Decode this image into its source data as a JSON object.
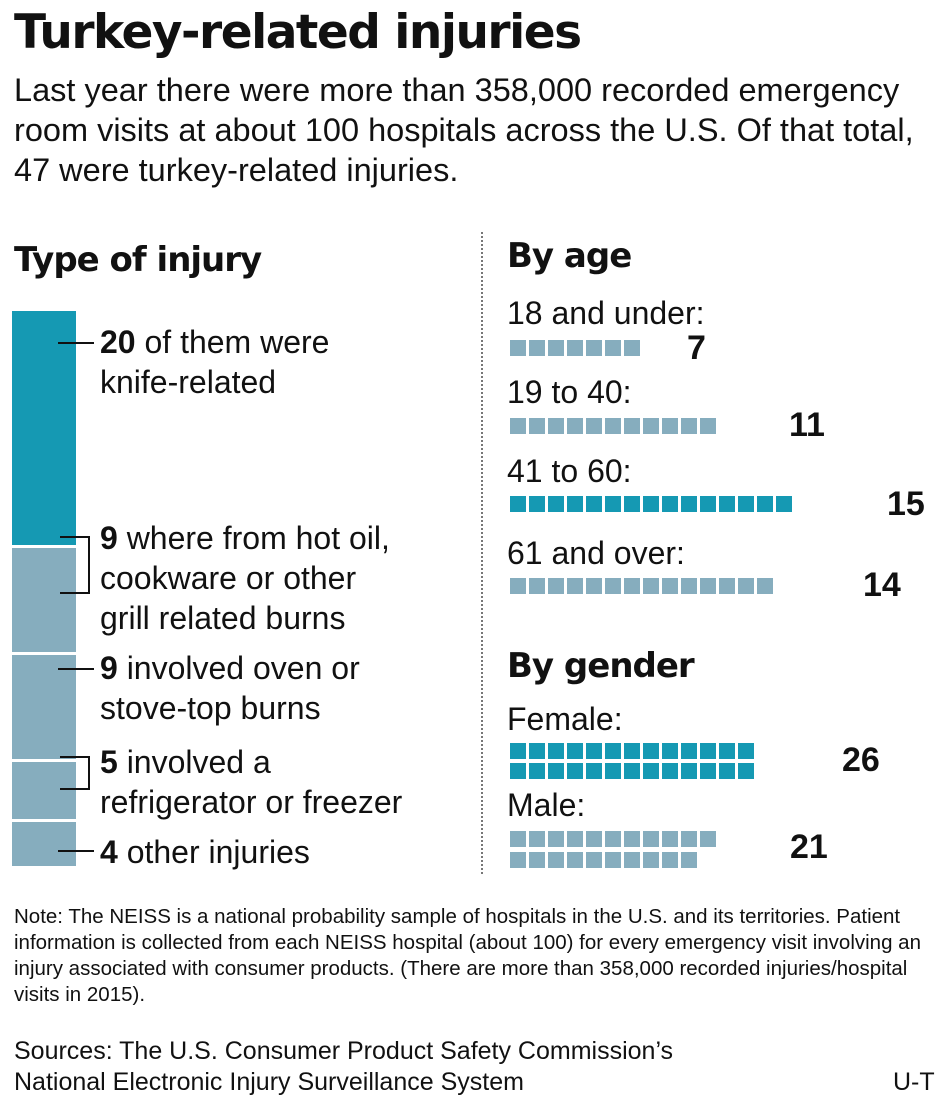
{
  "title": "Turkey-related injuries",
  "intro": "Last year there were more than 358,000 recorded emergency room visits at about 100 hospitals across the U.S. Of that total, 47 were turkey-related injuries.",
  "type_of_injury": {
    "heading": "Type of injury",
    "items": [
      {
        "count": "20",
        "line1": " of them were",
        "line2": "knife-related",
        "line3": ""
      },
      {
        "count": "9",
        "line1": " where from hot oil,",
        "line2": "cookware or other",
        "line3": "grill related burns"
      },
      {
        "count": "9",
        "line1": " involved oven or",
        "line2": "stove-top burns",
        "line3": ""
      },
      {
        "count": "5",
        "line1": " involved a",
        "line2": "refrigerator or freezer",
        "line3": ""
      },
      {
        "count": "4",
        "line1": " other injuries",
        "line2": "",
        "line3": ""
      }
    ]
  },
  "by_age": {
    "heading": "By age",
    "groups": [
      {
        "label": "18 and under:",
        "value": "7"
      },
      {
        "label": "19 to 40:",
        "value": "11"
      },
      {
        "label": "41 to 60:",
        "value": "15"
      },
      {
        "label": "61 and over:",
        "value": "14"
      }
    ]
  },
  "by_gender": {
    "heading": "By gender",
    "groups": [
      {
        "label": "Female:",
        "value": "26"
      },
      {
        "label": "Male:",
        "value": "21"
      }
    ]
  },
  "chart_data": [
    {
      "type": "bar",
      "title": "Type of injury",
      "categories": [
        "knife-related",
        "hot oil, cookware or other grill related burns",
        "oven or stove-top burns",
        "refrigerator or freezer",
        "other injuries"
      ],
      "values": [
        20,
        9,
        9,
        5,
        4
      ],
      "total": 47
    },
    {
      "type": "bar",
      "title": "By age",
      "categories": [
        "18 and under",
        "19 to 40",
        "41 to 60",
        "61 and over"
      ],
      "values": [
        7,
        11,
        15,
        14
      ],
      "highlight": "41 to 60"
    },
    {
      "type": "bar",
      "title": "By gender",
      "categories": [
        "Female",
        "Male"
      ],
      "values": [
        26,
        21
      ],
      "highlight": "Female"
    }
  ],
  "colors": {
    "highlight": "#1599b3",
    "muted": "#86adbe"
  },
  "note": "Note: The NEISS is a national probability sample of hospitals in the U.S. and its territories. Patient information is collected from each NEISS hospital (about 100) for every emergency visit involving an injury associated with consumer products. (There are more than 358,000 recorded injuries/hospital visits in 2015).",
  "sources": {
    "line1": "Sources: The U.S. Consumer Product Safety Commission’s",
    "line2": "National Electronic Injury Surveillance System"
  },
  "credit": "U-T"
}
